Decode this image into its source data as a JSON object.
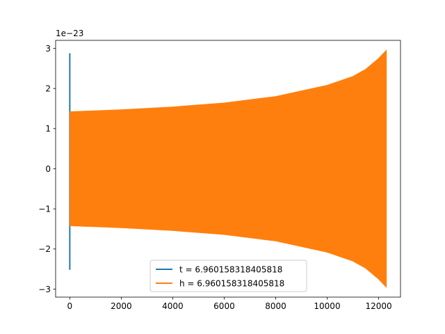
{
  "chart_data": {
    "type": "line",
    "title": "",
    "xlabel": "",
    "ylabel": "",
    "y_offset_label": "1e−23",
    "xlim": [
      -550,
      12850
    ],
    "ylim": [
      -3.2,
      3.2
    ],
    "x_ticks": [
      0,
      2000,
      4000,
      6000,
      8000,
      10000,
      12000
    ],
    "x_tick_labels": [
      "0",
      "2000",
      "4000",
      "6000",
      "8000",
      "10000",
      "12000"
    ],
    "y_ticks": [
      -3,
      -2,
      -1,
      0,
      1,
      2,
      3
    ],
    "y_tick_labels": [
      "−3",
      "−2",
      "−1",
      "0",
      "1",
      "2",
      "3"
    ],
    "grid": false,
    "legend_position": "bottom-center",
    "series": [
      {
        "name": "t = 6.960158318405818",
        "color": "#1f77b4",
        "style": "spike",
        "x": [
          0,
          0
        ],
        "y": [
          2.88,
          -2.52
        ]
      },
      {
        "name": "h = 6.960158318405818",
        "color": "#ff7f0e",
        "style": "oscillation-envelope",
        "x": [
          0,
          2000,
          4000,
          6000,
          8000,
          10000,
          11000,
          11500,
          12000,
          12300
        ],
        "y_upper": [
          1.42,
          1.47,
          1.54,
          1.64,
          1.8,
          2.08,
          2.3,
          2.48,
          2.75,
          2.95
        ],
        "y_lower": [
          -1.42,
          -1.47,
          -1.54,
          -1.64,
          -1.8,
          -2.08,
          -2.3,
          -2.48,
          -2.75,
          -2.95
        ]
      }
    ]
  }
}
